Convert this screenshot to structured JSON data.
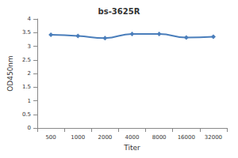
{
  "chart_data": {
    "type": "line",
    "title": "bs-3625R",
    "xlabel": "Titer",
    "ylabel": "OD450nm",
    "categories": [
      "500",
      "1000",
      "2000",
      "4000",
      "8000",
      "16000",
      "32000"
    ],
    "values": [
      3.42,
      3.38,
      3.3,
      3.45,
      3.45,
      3.32,
      3.35
    ],
    "color": "#4a7ebb",
    "marker": "diamond",
    "ylim": [
      0,
      4
    ],
    "yticks": [
      0,
      0.5,
      1,
      1.5,
      2,
      2.5,
      3,
      3.5,
      4
    ],
    "grid": false
  }
}
